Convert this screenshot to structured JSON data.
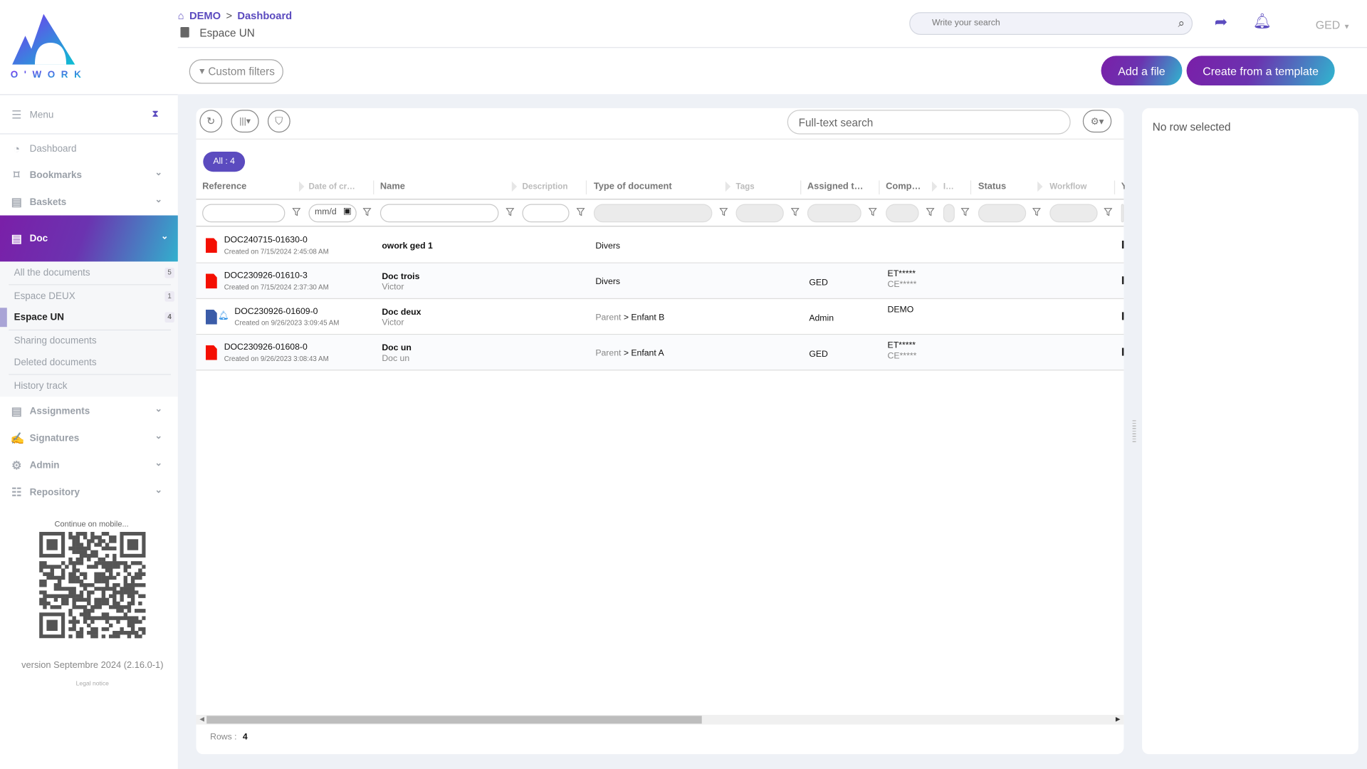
{
  "app": {
    "logo_text": "O'WORK",
    "brand_colors": {
      "purple": "#5b4bbf",
      "gradient_start": "#7a1fa8",
      "gradient_end": "#2fb7cf"
    }
  },
  "header": {
    "breadcrumb": [
      "DEMO",
      "Dashboard"
    ],
    "breadcrumb_sep": ">",
    "subtitle": "Espace UN",
    "search_placeholder": "Write your search",
    "module": "GED",
    "custom_filters": "Custom filters",
    "add_file": "Add a file",
    "create_template": "Create from a template"
  },
  "sidebar": {
    "menu": "Menu",
    "items": [
      {
        "label": "Dashboard",
        "icon": "gauge-icon"
      },
      {
        "label": "Bookmarks",
        "icon": "bookmark-icon"
      },
      {
        "label": "Baskets",
        "icon": "book-icon"
      },
      {
        "label": "Doc",
        "icon": "book-icon",
        "active": true
      }
    ],
    "doc_sub": [
      {
        "label": "All the documents",
        "count": "5"
      },
      {
        "label": "Espace DEUX",
        "count": "1"
      },
      {
        "label": "Espace UN",
        "count": "4",
        "active": true
      },
      {
        "label": "Sharing documents"
      },
      {
        "label": "Deleted documents"
      },
      {
        "label": "History track"
      }
    ],
    "items2": [
      {
        "label": "Assignments",
        "icon": "book-icon"
      },
      {
        "label": "Signatures",
        "icon": "signature-icon"
      },
      {
        "label": "Admin",
        "icon": "gear-icon"
      },
      {
        "label": "Repository",
        "icon": "list-icon"
      }
    ],
    "mobile": "Continue on mobile...",
    "version": "version Septembre 2024 (2.16.0-1)",
    "legal": "Legal notice"
  },
  "table": {
    "fulltext_placeholder": "Full-text search",
    "all_badge": "All : 4",
    "date_placeholder": "mm/d",
    "columns": [
      "Reference",
      "Date of cr…",
      "Name",
      "Description",
      "Type of document",
      "Tags",
      "Assigned t…",
      "Comp…",
      "I…",
      "Status",
      "Workflow",
      "Y"
    ],
    "rows": [
      {
        "icon": "pdf-icon",
        "ref": "DOC240715-01630-0",
        "created": "Created on 7/15/2024 2:45:08 AM",
        "name": "owork ged 1",
        "name2": "",
        "type_parent": "",
        "type": "Divers",
        "assigned": "",
        "comp1": "",
        "comp2": ""
      },
      {
        "icon": "pdf-icon",
        "ref": "DOC230926-01610-3",
        "created": "Created on 7/15/2024 2:37:30 AM",
        "name": "Doc trois",
        "name2": "Victor",
        "type_parent": "",
        "type": "Divers",
        "assigned": "GED",
        "comp1": "ET*****",
        "comp2": "CE*****"
      },
      {
        "icon": "word-icon",
        "bell": true,
        "ref": "DOC230926-01609-0",
        "created": "Created on 9/26/2023 3:09:45 AM",
        "name": "Doc deux",
        "name2": "Victor",
        "type_parent": "Parent",
        "type": "> Enfant B",
        "assigned": "Admin",
        "comp1": "DEMO",
        "comp2": ""
      },
      {
        "icon": "pdf-icon",
        "ref": "DOC230926-01608-0",
        "created": "Created on 9/26/2023 3:08:43 AM",
        "name": "Doc un",
        "name2": "Doc un",
        "type_parent": "Parent",
        "type": "> Enfant A",
        "assigned": "GED",
        "comp1": "ET*****",
        "comp2": "CE*****"
      }
    ],
    "rows_label": "Rows :",
    "rows_count": "4"
  },
  "detail": {
    "empty": "No row selected"
  }
}
